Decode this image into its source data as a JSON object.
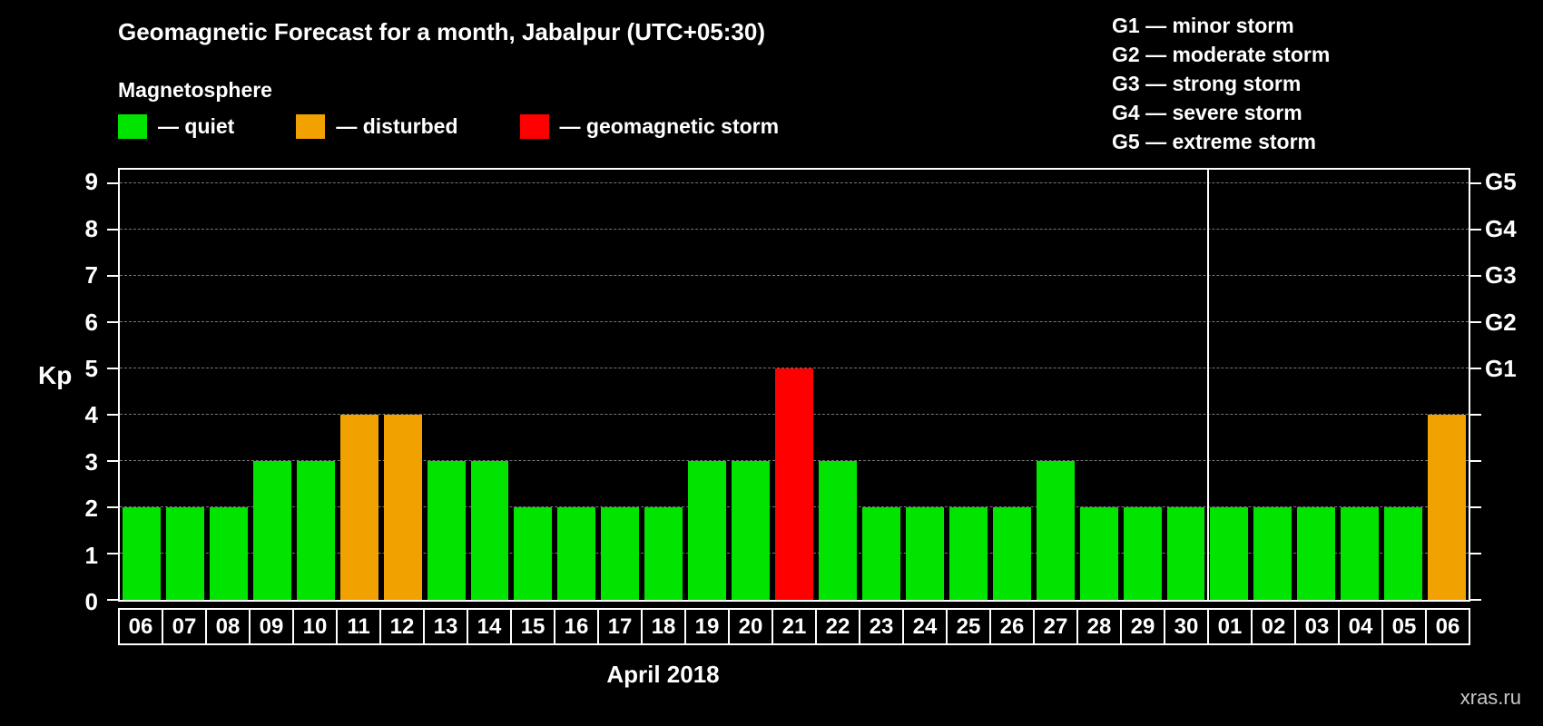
{
  "title": "Geomagnetic Forecast for a month, Jabalpur (UTC+05:30)",
  "legend": {
    "heading": "Magnetosphere",
    "items": [
      {
        "label": "— quiet",
        "status": "quiet",
        "color": "#00e400"
      },
      {
        "label": "— disturbed",
        "status": "disturbed",
        "color": "#f2a200"
      },
      {
        "label": "— geomagnetic storm",
        "status": "storm",
        "color": "#ff0000"
      }
    ]
  },
  "g_scale_legend": [
    "G1 — minor storm",
    "G2 — moderate storm",
    "G3 — strong storm",
    "G4 — severe storm",
    "G5 — extreme storm"
  ],
  "watermark": "xras.ru",
  "chart_data": {
    "type": "bar",
    "title": "Geomagnetic Forecast for a month, Jabalpur (UTC+05:30)",
    "xlabel": "April 2018",
    "ylabel": "Kp",
    "ylim": [
      0,
      9.3
    ],
    "yticks": [
      0,
      1,
      2,
      3,
      4,
      5,
      6,
      7,
      8,
      9
    ],
    "right_axis_ticks": [
      {
        "label": "G1",
        "value": 5
      },
      {
        "label": "G2",
        "value": 6
      },
      {
        "label": "G3",
        "value": 7
      },
      {
        "label": "G4",
        "value": 8
      },
      {
        "label": "G5",
        "value": 9
      }
    ],
    "grid": "horizontal-dashed",
    "legend_position": "top-left",
    "month_separator_after_index": 24,
    "categories": [
      "06",
      "07",
      "08",
      "09",
      "10",
      "11",
      "12",
      "13",
      "14",
      "15",
      "16",
      "17",
      "18",
      "19",
      "20",
      "21",
      "22",
      "23",
      "24",
      "25",
      "26",
      "27",
      "28",
      "29",
      "30",
      "01",
      "02",
      "03",
      "04",
      "05",
      "06"
    ],
    "values": [
      2,
      2,
      2,
      3,
      3,
      4,
      4,
      3,
      3,
      2,
      2,
      2,
      2,
      3,
      3,
      5,
      3,
      2,
      2,
      2,
      2,
      3,
      2,
      2,
      2,
      2,
      2,
      2,
      2,
      2,
      4
    ],
    "statuses": [
      "quiet",
      "quiet",
      "quiet",
      "quiet",
      "quiet",
      "disturbed",
      "disturbed",
      "quiet",
      "quiet",
      "quiet",
      "quiet",
      "quiet",
      "quiet",
      "quiet",
      "quiet",
      "storm",
      "quiet",
      "quiet",
      "quiet",
      "quiet",
      "quiet",
      "quiet",
      "quiet",
      "quiet",
      "quiet",
      "quiet",
      "quiet",
      "quiet",
      "quiet",
      "quiet",
      "disturbed"
    ],
    "colors": {
      "quiet": "#00e400",
      "disturbed": "#f2a200",
      "storm": "#ff0000"
    }
  }
}
